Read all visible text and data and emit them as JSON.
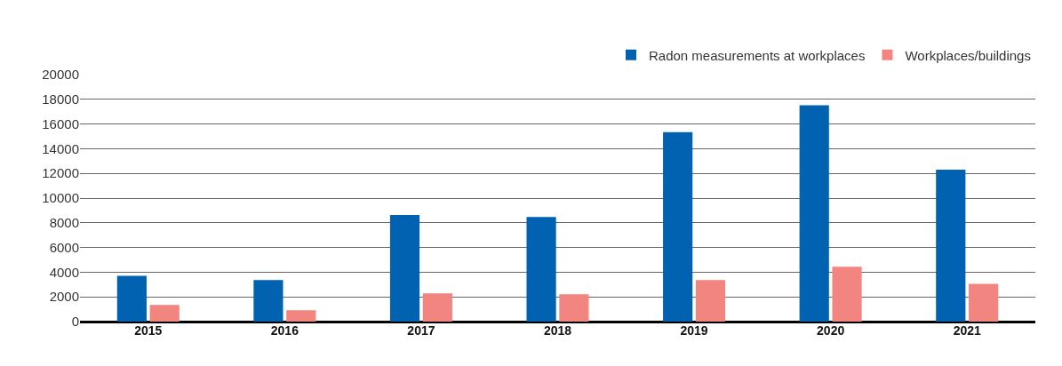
{
  "chart_data": {
    "type": "bar",
    "categories": [
      "2015",
      "2016",
      "2017",
      "2018",
      "2019",
      "2020",
      "2021"
    ],
    "series": [
      {
        "name": "Radon measurements at workplaces",
        "color": "#0062b0",
        "values": [
          3700,
          3370,
          8630,
          8470,
          15340,
          17520,
          12300
        ]
      },
      {
        "name": "Workplaces/buildings",
        "color": "#f38580",
        "values": [
          1350,
          910,
          2290,
          2210,
          3370,
          4440,
          3060
        ]
      }
    ],
    "ylim": [
      0,
      20000
    ],
    "yticks": [
      0,
      2000,
      4000,
      6000,
      8000,
      10000,
      12000,
      14000,
      16000,
      18000,
      20000
    ],
    "grid": "y",
    "legend": "top right"
  }
}
